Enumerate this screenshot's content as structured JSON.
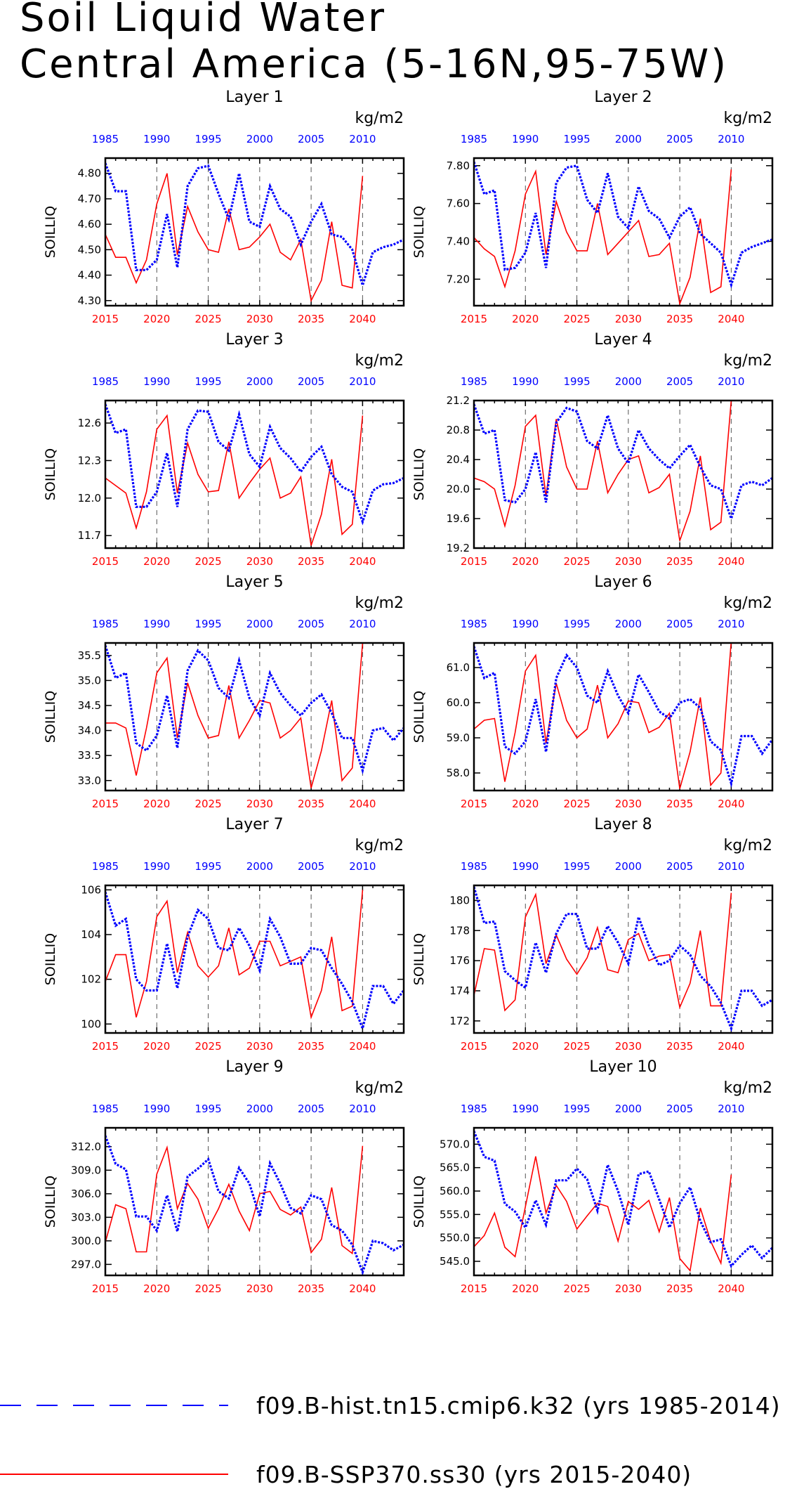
{
  "title_line1": "Soil Liquid Water",
  "title_line2": "Central America (5-16N,95-75W)",
  "colors": {
    "hist": "#0000ff",
    "ssp": "#ff0000",
    "axis": "#000000",
    "grid": "#555555"
  },
  "legend": {
    "hist_label": "f09.B-hist.tn15.cmip6.k32 (yrs 1985-2014)",
    "ssp_label": "f09.B-SSP370.ss30 (yrs 2015-2040)"
  },
  "chart_data": [
    {
      "type": "line",
      "title": "Layer 1",
      "ylabel": "SOILLIQ",
      "units": "kg/m2",
      "ylim": [
        4.28,
        4.86
      ],
      "yticks": [
        4.3,
        4.4,
        4.5,
        4.6,
        4.7,
        4.8
      ],
      "ytick_labels": [
        "4.30",
        "4.40",
        "4.50",
        "4.60",
        "4.70",
        "4.80"
      ],
      "x_top": {
        "name": "hist",
        "ticks": [
          1985,
          1990,
          1995,
          2000,
          2005,
          2010
        ],
        "values": [
          4.84,
          4.73,
          4.73,
          4.42,
          4.42,
          4.46,
          4.64,
          4.43,
          4.75,
          4.82,
          4.83,
          4.72,
          4.62,
          4.8,
          4.61,
          4.59,
          4.75,
          4.66,
          4.63,
          4.52,
          4.61,
          4.68,
          4.56,
          4.55,
          4.5,
          4.36,
          4.49,
          4.51,
          4.52,
          4.54
        ]
      },
      "x_bottom": {
        "name": "ssp",
        "ticks": [
          2015,
          2020,
          2025,
          2030,
          2035,
          2040
        ],
        "values": [
          4.56,
          4.47,
          4.47,
          4.37,
          4.46,
          4.68,
          4.8,
          4.48,
          4.67,
          4.57,
          4.5,
          4.49,
          4.66,
          4.5,
          4.51,
          4.55,
          4.6,
          4.49,
          4.46,
          4.54,
          4.3,
          4.38,
          4.61,
          4.36,
          4.35,
          4.79
        ]
      }
    },
    {
      "type": "line",
      "title": "Layer 2",
      "ylabel": "SOILLIQ",
      "units": "kg/m2",
      "ylim": [
        7.06,
        7.84
      ],
      "yticks": [
        7.2,
        7.4,
        7.6,
        7.8
      ],
      "ytick_labels": [
        "7.20",
        "7.40",
        "7.60",
        "7.80"
      ],
      "x_top": {
        "name": "hist",
        "ticks": [
          1985,
          1990,
          1995,
          2000,
          2005,
          2010
        ],
        "values": [
          7.82,
          7.65,
          7.67,
          7.25,
          7.26,
          7.34,
          7.55,
          7.26,
          7.71,
          7.79,
          7.8,
          7.62,
          7.55,
          7.76,
          7.53,
          7.47,
          7.69,
          7.56,
          7.52,
          7.42,
          7.53,
          7.58,
          7.44,
          7.39,
          7.34,
          7.17,
          7.34,
          7.37,
          7.39,
          7.41
        ]
      },
      "x_bottom": {
        "name": "ssp",
        "ticks": [
          2015,
          2020,
          2025,
          2030,
          2035,
          2040
        ],
        "values": [
          7.42,
          7.36,
          7.32,
          7.16,
          7.35,
          7.65,
          7.77,
          7.33,
          7.61,
          7.45,
          7.35,
          7.35,
          7.6,
          7.33,
          7.39,
          7.45,
          7.51,
          7.32,
          7.33,
          7.39,
          7.07,
          7.21,
          7.52,
          7.13,
          7.16,
          7.78
        ]
      }
    },
    {
      "type": "line",
      "title": "Layer 3",
      "ylabel": "SOILLIQ",
      "units": "kg/m2",
      "ylim": [
        11.6,
        12.78
      ],
      "yticks": [
        11.7,
        12.0,
        12.3,
        12.6
      ],
      "ytick_labels": [
        "11.7",
        "12.0",
        "12.3",
        "12.6"
      ],
      "x_top": {
        "name": "hist",
        "ticks": [
          1985,
          1990,
          1995,
          2000,
          2005,
          2010
        ],
        "values": [
          12.75,
          12.52,
          12.55,
          11.93,
          11.93,
          12.05,
          12.36,
          11.93,
          12.55,
          12.7,
          12.69,
          12.45,
          12.38,
          12.67,
          12.35,
          12.25,
          12.57,
          12.4,
          12.32,
          12.21,
          12.33,
          12.41,
          12.19,
          12.09,
          12.05,
          11.81,
          12.06,
          12.11,
          12.12,
          12.16
        ]
      },
      "x_bottom": {
        "name": "ssp",
        "ticks": [
          2015,
          2020,
          2025,
          2030,
          2035,
          2040
        ],
        "values": [
          12.16,
          12.1,
          12.04,
          11.76,
          12.05,
          12.55,
          12.66,
          12.04,
          12.44,
          12.19,
          12.05,
          12.06,
          12.45,
          12.0,
          12.12,
          12.23,
          12.32,
          12.0,
          12.04,
          12.17,
          11.62,
          11.87,
          12.31,
          11.71,
          11.79,
          12.66
        ]
      }
    },
    {
      "type": "line",
      "title": "Layer 4",
      "ylabel": "SOILLIQ",
      "units": "kg/m2",
      "ylim": [
        19.2,
        21.2
      ],
      "yticks": [
        19.2,
        19.6,
        20.0,
        20.4,
        20.8,
        21.2
      ],
      "ytick_labels": [
        "19.2",
        "19.6",
        "20.0",
        "20.4",
        "20.8",
        "21.2"
      ],
      "x_top": {
        "name": "hist",
        "ticks": [
          1985,
          1990,
          1995,
          2000,
          2005,
          2010
        ],
        "values": [
          21.15,
          20.75,
          20.8,
          19.85,
          19.82,
          20.0,
          20.5,
          19.82,
          20.9,
          21.1,
          21.05,
          20.65,
          20.55,
          21.0,
          20.55,
          20.35,
          20.8,
          20.55,
          20.4,
          20.28,
          20.45,
          20.6,
          20.3,
          20.05,
          20.0,
          19.6,
          20.05,
          20.1,
          20.05,
          20.15
        ]
      },
      "x_bottom": {
        "name": "ssp",
        "ticks": [
          2015,
          2020,
          2025,
          2030,
          2035,
          2040
        ],
        "values": [
          20.15,
          20.1,
          20.0,
          19.5,
          20.05,
          20.85,
          21.0,
          19.9,
          20.95,
          20.3,
          20.0,
          20.0,
          20.65,
          19.95,
          20.2,
          20.4,
          20.45,
          19.95,
          20.02,
          20.2,
          19.3,
          19.7,
          20.45,
          19.45,
          19.55,
          21.2
        ]
      }
    },
    {
      "type": "line",
      "title": "Layer 5",
      "ylabel": "SOILLIQ",
      "units": "kg/m2",
      "ylim": [
        32.8,
        35.75
      ],
      "yticks": [
        33.0,
        33.5,
        34.0,
        34.5,
        35.0,
        35.5
      ],
      "ytick_labels": [
        "33.0",
        "33.5",
        "34.0",
        "34.5",
        "35.0",
        "35.5"
      ],
      "x_top": {
        "name": "hist",
        "ticks": [
          1985,
          1990,
          1995,
          2000,
          2005,
          2010
        ],
        "values": [
          35.7,
          35.05,
          35.15,
          33.75,
          33.6,
          33.9,
          34.7,
          33.65,
          35.2,
          35.6,
          35.4,
          34.85,
          34.65,
          35.4,
          34.65,
          34.3,
          35.15,
          34.75,
          34.5,
          34.3,
          34.55,
          34.72,
          34.35,
          33.85,
          33.85,
          33.2,
          34.0,
          34.05,
          33.8,
          34.05
        ]
      },
      "x_bottom": {
        "name": "ssp",
        "ticks": [
          2015,
          2020,
          2025,
          2030,
          2035,
          2040
        ],
        "values": [
          34.15,
          34.15,
          34.05,
          33.1,
          34.05,
          35.15,
          35.45,
          33.85,
          34.95,
          34.3,
          33.85,
          33.9,
          34.9,
          33.85,
          34.2,
          34.6,
          34.55,
          33.85,
          34.0,
          34.25,
          32.85,
          33.6,
          34.6,
          33.0,
          33.25,
          35.75
        ]
      }
    },
    {
      "type": "line",
      "title": "Layer 6",
      "ylabel": "SOILLIQ",
      "units": "kg/m2",
      "ylim": [
        57.5,
        61.7
      ],
      "yticks": [
        58.0,
        59.0,
        60.0,
        61.0
      ],
      "ytick_labels": [
        "58.0",
        "59.0",
        "60.0",
        "61.0"
      ],
      "x_top": {
        "name": "hist",
        "ticks": [
          1985,
          1990,
          1995,
          2000,
          2005,
          2010
        ],
        "values": [
          61.6,
          60.7,
          60.85,
          58.75,
          58.55,
          58.9,
          60.1,
          58.6,
          60.7,
          61.35,
          61.0,
          60.2,
          60.0,
          60.9,
          60.2,
          59.7,
          60.8,
          60.3,
          59.75,
          59.55,
          60.0,
          60.1,
          59.85,
          58.9,
          58.65,
          57.7,
          59.05,
          59.05,
          58.55,
          58.95
        ]
      },
      "x_bottom": {
        "name": "ssp",
        "ticks": [
          2015,
          2020,
          2025,
          2030,
          2035,
          2040
        ],
        "values": [
          59.25,
          59.5,
          59.55,
          57.75,
          59.15,
          60.9,
          61.35,
          58.85,
          60.55,
          59.5,
          59.0,
          59.25,
          60.5,
          59.0,
          59.4,
          60.05,
          60.0,
          59.15,
          59.3,
          59.7,
          57.55,
          58.6,
          60.15,
          57.65,
          58.0,
          61.75
        ]
      }
    },
    {
      "type": "line",
      "title": "Layer 7",
      "ylabel": "SOILLIQ",
      "units": "kg/m2",
      "ylim": [
        99.6,
        106.2
      ],
      "yticks": [
        100,
        102,
        104,
        106
      ],
      "ytick_labels": [
        "100",
        "102",
        "104",
        "106"
      ],
      "x_top": {
        "name": "hist",
        "ticks": [
          1985,
          1990,
          1995,
          2000,
          2005,
          2010
        ],
        "values": [
          105.9,
          104.4,
          104.7,
          102.0,
          101.5,
          101.5,
          103.6,
          101.6,
          103.9,
          105.1,
          104.7,
          103.4,
          103.3,
          104.3,
          103.5,
          102.4,
          104.7,
          103.9,
          102.7,
          102.7,
          103.4,
          103.3,
          102.5,
          101.8,
          101.0,
          99.8,
          101.7,
          101.7,
          100.9,
          101.5
        ]
      },
      "x_bottom": {
        "name": "ssp",
        "ticks": [
          2015,
          2020,
          2025,
          2030,
          2035,
          2040
        ],
        "values": [
          101.9,
          103.1,
          103.1,
          100.3,
          101.9,
          104.8,
          105.5,
          102.3,
          104.1,
          102.6,
          102.1,
          102.6,
          104.3,
          102.2,
          102.5,
          103.7,
          103.7,
          102.6,
          102.8,
          103.0,
          100.3,
          101.5,
          103.9,
          100.6,
          100.8,
          106.0
        ]
      }
    },
    {
      "type": "line",
      "title": "Layer 8",
      "ylabel": "SOILLIQ",
      "units": "kg/m2",
      "ylim": [
        171.2,
        181.0
      ],
      "yticks": [
        172,
        174,
        176,
        178,
        180
      ],
      "ytick_labels": [
        "172",
        "174",
        "176",
        "178",
        "180"
      ],
      "x_top": {
        "name": "hist",
        "ticks": [
          1985,
          1990,
          1995,
          2000,
          2005,
          2010
        ],
        "values": [
          180.9,
          178.5,
          178.6,
          175.3,
          174.7,
          174.2,
          177.2,
          175.2,
          177.8,
          179.1,
          179.1,
          176.8,
          176.8,
          178.3,
          177.2,
          175.8,
          178.9,
          177.0,
          175.7,
          176.0,
          177.0,
          176.4,
          175.0,
          174.3,
          173.2,
          171.5,
          174.0,
          174.0,
          173.0,
          173.4
        ]
      },
      "x_bottom": {
        "name": "ssp",
        "ticks": [
          2015,
          2020,
          2025,
          2030,
          2035,
          2040
        ],
        "values": [
          173.7,
          176.8,
          176.7,
          172.7,
          173.4,
          178.9,
          180.4,
          175.8,
          177.7,
          176.1,
          175.1,
          176.2,
          178.2,
          175.4,
          175.2,
          177.4,
          177.8,
          176.0,
          176.3,
          176.4,
          172.9,
          174.5,
          178.0,
          173.0,
          173.0,
          180.5
        ]
      }
    },
    {
      "type": "line",
      "title": "Layer 9",
      "ylabel": "SOILLIQ",
      "units": "kg/m2",
      "ylim": [
        295.6,
        314.4
      ],
      "yticks": [
        297.0,
        300.0,
        303.0,
        306.0,
        309.0,
        312.0
      ],
      "ytick_labels": [
        "297.0",
        "300.0",
        "303.0",
        "306.0",
        "309.0",
        "312.0"
      ],
      "x_top": {
        "name": "hist",
        "ticks": [
          1985,
          1990,
          1995,
          2000,
          2005,
          2010
        ],
        "values": [
          313.4,
          309.8,
          309.1,
          303.1,
          303.1,
          301.3,
          305.8,
          301.2,
          308.2,
          309.2,
          310.4,
          306.3,
          305.4,
          309.3,
          307.3,
          303.1,
          309.9,
          307.3,
          304.2,
          303.5,
          305.8,
          305.3,
          302.0,
          301.3,
          299.5,
          296.0,
          300.0,
          299.7,
          298.8,
          299.5
        ]
      },
      "x_bottom": {
        "name": "ssp",
        "ticks": [
          2015,
          2020,
          2025,
          2030,
          2035,
          2040
        ],
        "values": [
          299.8,
          304.6,
          304.1,
          298.6,
          298.6,
          308.5,
          311.9,
          304.1,
          307.3,
          305.3,
          301.6,
          304.1,
          307.2,
          303.8,
          301.3,
          306.0,
          306.3,
          304.0,
          303.3,
          304.3,
          298.5,
          300.2,
          306.8,
          299.4,
          298.4,
          312.1
        ]
      }
    },
    {
      "type": "line",
      "title": "Layer 10",
      "ylabel": "SOILLIQ",
      "units": "kg/m2",
      "ylim": [
        542.0,
        573.5
      ],
      "yticks": [
        545.0,
        550.0,
        555.0,
        560.0,
        565.0,
        570.0
      ],
      "ytick_labels": [
        "545.0",
        "550.0",
        "555.0",
        "560.0",
        "565.0",
        "570.0"
      ],
      "x_top": {
        "name": "hist",
        "ticks": [
          1985,
          1990,
          1995,
          2000,
          2005,
          2010
        ],
        "values": [
          572.8,
          567.3,
          566.5,
          557.3,
          555.6,
          552.2,
          558.0,
          552.8,
          562.3,
          562.3,
          564.8,
          562.5,
          555.8,
          565.6,
          560.0,
          552.8,
          563.6,
          564.2,
          558.2,
          552.2,
          557.4,
          560.8,
          553.6,
          549.1,
          549.7,
          544.0,
          546.4,
          548.4,
          545.7,
          547.9
        ]
      },
      "x_bottom": {
        "name": "ssp",
        "ticks": [
          2015,
          2020,
          2025,
          2030,
          2035,
          2040
        ],
        "values": [
          548.1,
          550.5,
          555.3,
          548.0,
          546.0,
          556.7,
          567.4,
          555.3,
          561.2,
          557.8,
          551.9,
          554.7,
          557.4,
          556.7,
          549.3,
          557.8,
          556.1,
          558.0,
          551.3,
          558.6,
          545.6,
          543.0,
          556.4,
          549.3,
          544.6,
          563.5
        ]
      }
    }
  ]
}
